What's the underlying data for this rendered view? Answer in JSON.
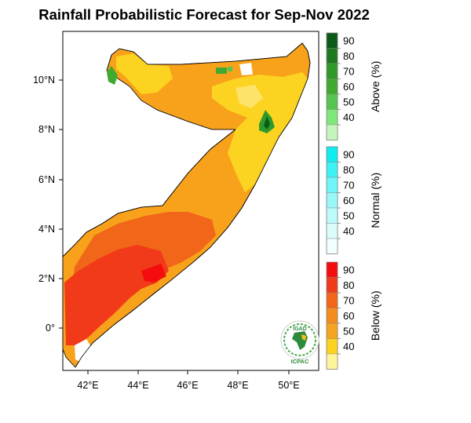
{
  "title": "Rainfall Probabilistic Forecast for Sep-Nov 2022",
  "map": {
    "lon_ticks": [
      "42°E",
      "44°E",
      "46°E",
      "48°E",
      "50°E"
    ],
    "lat_ticks": [
      "10°N",
      "8°N",
      "6°N",
      "4°N",
      "2°N",
      "0°"
    ]
  },
  "legend": {
    "above": {
      "title": "Above (%)",
      "labels": [
        "90",
        "80",
        "70",
        "60",
        "50",
        "40"
      ],
      "colors": [
        "#0b5a1a",
        "#1f7a1f",
        "#2f9a2a",
        "#3faa2f",
        "#55c450",
        "#7fe87a",
        "#c4f5bd"
      ]
    },
    "normal": {
      "title": "Normal (%)",
      "labels": [
        "90",
        "80",
        "70",
        "60",
        "50",
        "40"
      ],
      "colors": [
        "#10ecf0",
        "#3df2f3",
        "#6ff5f5",
        "#98f8f8",
        "#bdfafa",
        "#dcfcfc",
        "#f0fefe"
      ]
    },
    "below": {
      "title": "Below (%)",
      "labels": [
        "90",
        "80",
        "70",
        "60",
        "50",
        "40"
      ],
      "colors": [
        "#f50d0d",
        "#f03a1a",
        "#f2661a",
        "#f58c1e",
        "#f5a51f",
        "#fcd320",
        "#fef59a"
      ]
    }
  },
  "logo": {
    "top_text": "IGAD",
    "bottom_text": "ICPAC"
  }
}
